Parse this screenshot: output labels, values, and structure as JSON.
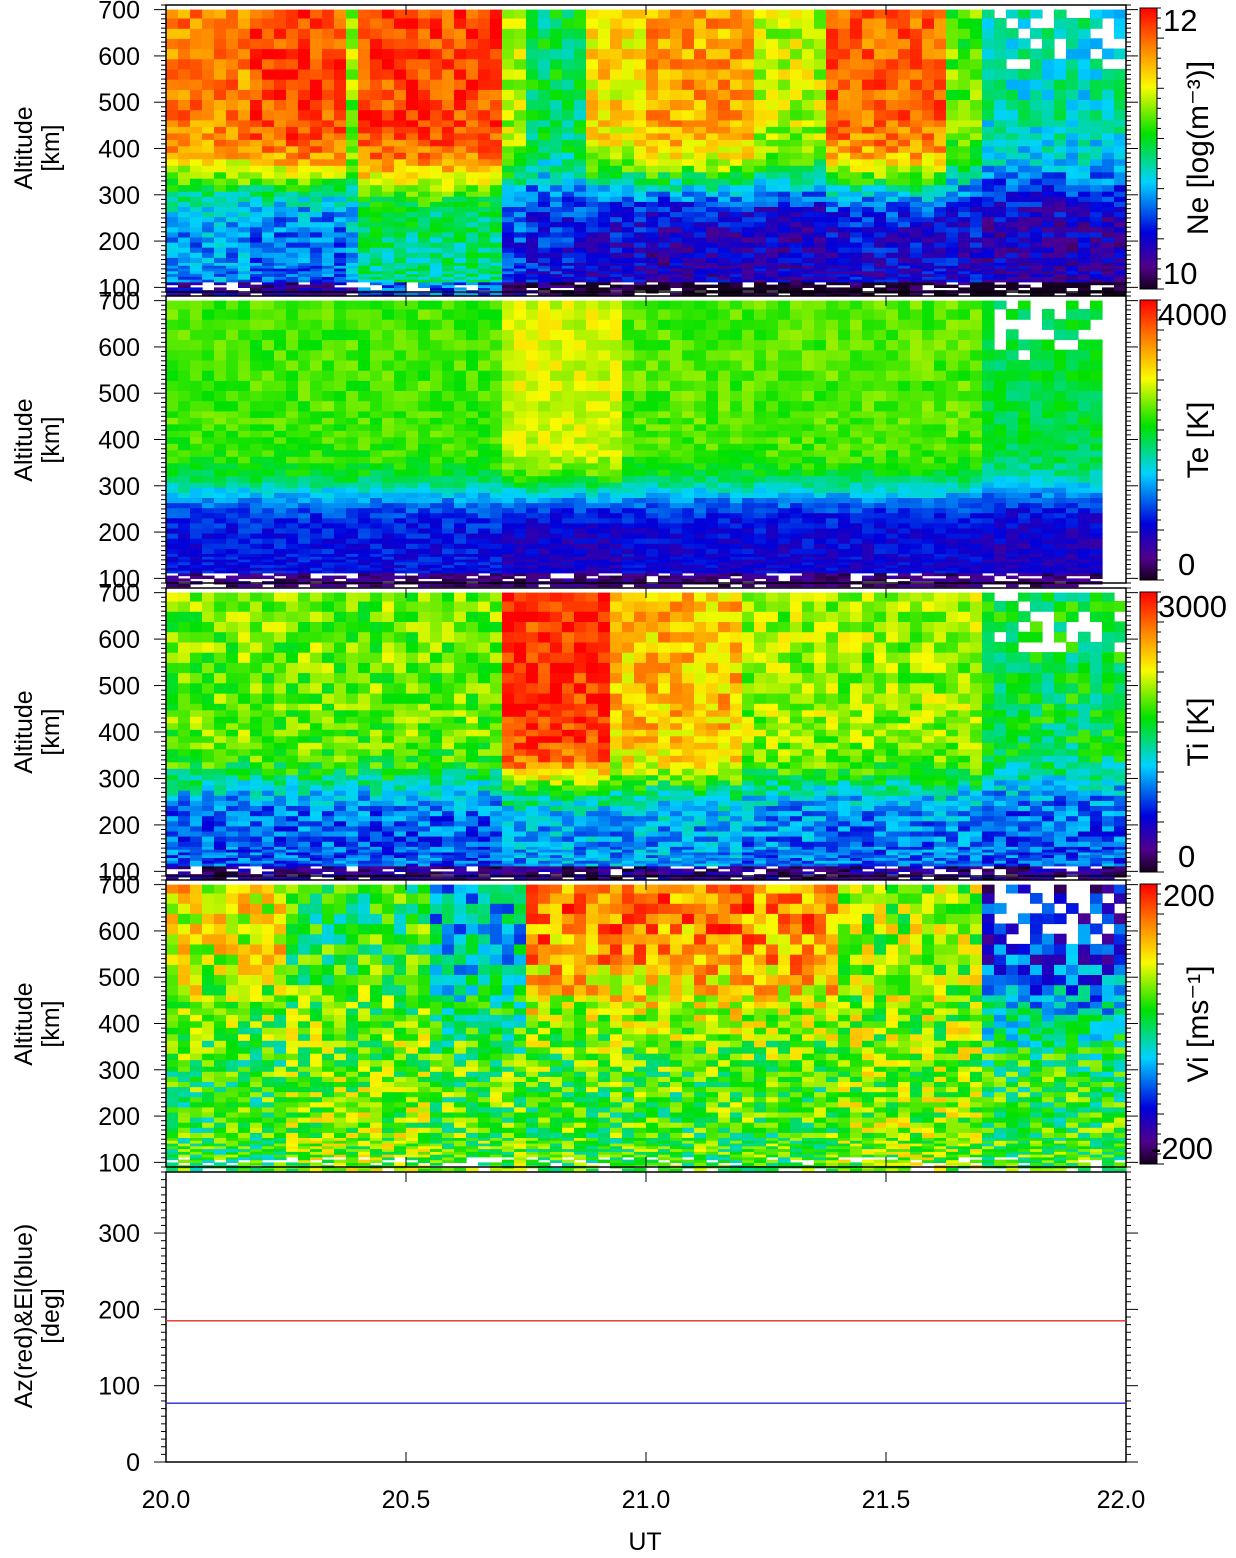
{
  "x_axis": {
    "label": "UT",
    "range": [
      20.0,
      22.0
    ],
    "tick_labels": [
      "20.0",
      "20.5",
      "21.0",
      "21.5",
      "22.0"
    ]
  },
  "colors": {
    "az_line": "#e0301e",
    "el_line": "#2a2ad0",
    "missing": "#ffffff"
  },
  "chart_data": [
    {
      "type": "heatmap",
      "key": "ne",
      "ylabel_line1": "Altitude",
      "ylabel_line2": "[km]",
      "ylim": [
        90,
        710
      ],
      "ytick_labels": [
        "100",
        "200",
        "300",
        "400",
        "500",
        "600",
        "700"
      ],
      "colorbar": {
        "label": "Ne [log(m⁻³)]",
        "range": [
          9.5,
          12.3
        ],
        "tick_labels": [
          "12",
          "10"
        ],
        "colormap": "rainbow"
      },
      "time_blocks": [
        {
          "t_start": 20.0,
          "t_end": 20.17,
          "top": 11.9,
          "floor": 10.4
        },
        {
          "t_start": 20.17,
          "t_end": 20.37,
          "top": 12.1,
          "floor": 10.3
        },
        {
          "t_start": 20.37,
          "t_end": 20.4,
          "top": 11.3,
          "floor": 10.5
        },
        {
          "t_start": 20.4,
          "t_end": 20.7,
          "top": 12.1,
          "floor": 10.8
        },
        {
          "t_start": 20.7,
          "t_end": 20.75,
          "top": 11.4,
          "floor": 10.2
        },
        {
          "t_start": 20.75,
          "t_end": 20.87,
          "top": 10.9,
          "floor": 10.1
        },
        {
          "t_start": 20.87,
          "t_end": 21.0,
          "top": 11.6,
          "floor": 10.0
        },
        {
          "t_start": 21.0,
          "t_end": 21.23,
          "top": 11.8,
          "floor": 9.9
        },
        {
          "t_start": 21.23,
          "t_end": 21.37,
          "top": 11.4,
          "floor": 9.9
        },
        {
          "t_start": 21.37,
          "t_end": 21.63,
          "top": 12.0,
          "floor": 10.0
        },
        {
          "t_start": 21.63,
          "t_end": 21.7,
          "top": 11.2,
          "floor": 10.0
        },
        {
          "t_start": 21.7,
          "t_end": 22.0,
          "top": 10.7,
          "floor": 9.9
        }
      ]
    },
    {
      "type": "heatmap",
      "key": "te",
      "ylabel_line1": "Altitude",
      "ylabel_line2": "[km]",
      "ylim": [
        90,
        710
      ],
      "ytick_labels": [
        "100",
        "200",
        "300",
        "400",
        "500",
        "600",
        "700"
      ],
      "colorbar": {
        "label": "Te [K]",
        "range": [
          -300,
          4000
        ],
        "tick_labels": [
          "4000",
          "0"
        ],
        "colormap": "rainbow"
      },
      "time_blocks": [
        {
          "t_start": 20.0,
          "t_end": 20.7,
          "top": 2250,
          "floor": 600
        },
        {
          "t_start": 20.7,
          "t_end": 20.95,
          "top": 2700,
          "floor": 400
        },
        {
          "t_start": 20.95,
          "t_end": 21.7,
          "top": 2300,
          "floor": 500
        },
        {
          "t_start": 21.7,
          "t_end": 22.0,
          "top": 1900,
          "floor": 400
        }
      ]
    },
    {
      "type": "heatmap",
      "key": "ti",
      "ylabel_line1": "Altitude",
      "ylabel_line2": "[km]",
      "ylim": [
        90,
        710
      ],
      "ytick_labels": [
        "100",
        "200",
        "300",
        "400",
        "500",
        "600",
        "700"
      ],
      "colorbar": {
        "label": "Ti [K]",
        "range": [
          -300,
          3000
        ],
        "tick_labels": [
          "3000",
          "0"
        ],
        "colormap": "rainbow"
      },
      "time_blocks": [
        {
          "t_start": 20.0,
          "t_end": 20.7,
          "top": 1750,
          "floor": 600
        },
        {
          "t_start": 20.7,
          "t_end": 20.92,
          "top": 2850,
          "floor": 800
        },
        {
          "t_start": 20.92,
          "t_end": 21.2,
          "top": 2300,
          "floor": 800
        },
        {
          "t_start": 21.2,
          "t_end": 21.7,
          "top": 1850,
          "floor": 700
        },
        {
          "t_start": 21.7,
          "t_end": 22.0,
          "top": 1400,
          "floor": 600
        }
      ]
    },
    {
      "type": "heatmap",
      "key": "vi",
      "ylabel_line1": "Altitude",
      "ylabel_line2": "[km]",
      "ylim": [
        90,
        710
      ],
      "ytick_labels": [
        "100",
        "200",
        "300",
        "400",
        "500",
        "600",
        "700"
      ],
      "colorbar": {
        "label": "Vi [ms⁻¹]",
        "range": [
          -230,
          230
        ],
        "tick_labels": [
          "200",
          "-200"
        ],
        "colormap": "rainbow"
      },
      "time_blocks": [
        {
          "t_start": 20.0,
          "t_end": 20.25,
          "top": 110,
          "floor": 20
        },
        {
          "t_start": 20.25,
          "t_end": 20.55,
          "top": 20,
          "floor": 60
        },
        {
          "t_start": 20.55,
          "t_end": 20.75,
          "top": -60,
          "floor": 40
        },
        {
          "t_start": 20.75,
          "t_end": 21.4,
          "top": 170,
          "floor": 30
        },
        {
          "t_start": 21.4,
          "t_end": 21.7,
          "top": 70,
          "floor": 60
        },
        {
          "t_start": 21.7,
          "t_end": 22.0,
          "top": -150,
          "floor": 30
        }
      ]
    },
    {
      "type": "line",
      "key": "azel",
      "ylabel_line1": "Az(red)&El(blue)",
      "ylabel_line2": "[deg]",
      "ylim": [
        0,
        380
      ],
      "ytick_labels": [
        "0",
        "100",
        "200",
        "300"
      ],
      "series": [
        {
          "name": "Az",
          "color": "#e0301e",
          "x": [
            20.0,
            22.0
          ],
          "y": [
            185,
            185
          ]
        },
        {
          "name": "El",
          "color": "#2a2ad0",
          "x": [
            20.0,
            22.0
          ],
          "y": [
            77,
            77
          ]
        }
      ]
    }
  ]
}
